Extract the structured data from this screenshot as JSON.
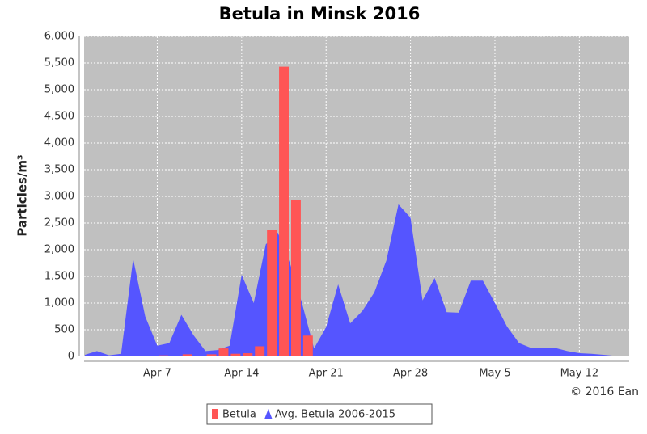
{
  "chart_data": {
    "type": "bar-area",
    "title": "Betula in Minsk 2016",
    "y_label": "Particles/m³",
    "credit": "© 2016 Ean",
    "categories": [
      null,
      null,
      null,
      null,
      null,
      null,
      "Apr 7",
      null,
      null,
      null,
      null,
      null,
      null,
      "Apr 14",
      null,
      null,
      null,
      null,
      null,
      null,
      "Apr 21",
      null,
      null,
      null,
      null,
      null,
      null,
      "Apr 28",
      null,
      null,
      null,
      null,
      null,
      null,
      "May 5",
      null,
      null,
      null,
      null,
      null,
      null,
      "May 12",
      null,
      null,
      null,
      null
    ],
    "series": [
      {
        "name": "Betula",
        "type": "bar",
        "color": "#ff5555",
        "values": [
          null,
          null,
          null,
          null,
          null,
          null,
          20,
          null,
          40,
          null,
          40,
          150,
          50,
          60,
          190,
          2370,
          5430,
          2930,
          390,
          null,
          null,
          null,
          null,
          null,
          null,
          null,
          null,
          null,
          null,
          null,
          null,
          null,
          null,
          null,
          null,
          null,
          null,
          null,
          null,
          null,
          null,
          null,
          null,
          null,
          null,
          null
        ]
      },
      {
        "name": "Avg. Betula 2006-2015",
        "type": "area",
        "color": "#5555ff",
        "values": [
          30,
          100,
          20,
          50,
          1830,
          750,
          200,
          250,
          780,
          400,
          100,
          120,
          200,
          1530,
          1000,
          2100,
          2320,
          1750,
          1000,
          150,
          550,
          1350,
          620,
          850,
          1200,
          1800,
          2850,
          2600,
          1050,
          1470,
          830,
          820,
          1420,
          1420,
          1000,
          560,
          250,
          160,
          160,
          160,
          100,
          60,
          50,
          30,
          10,
          0
        ]
      }
    ],
    "ylim": [
      0,
      6000
    ],
    "yticks": [
      0,
      500,
      {
        "value": 1000,
        "label": "1,000"
      },
      {
        "value": 1500,
        "label": "1,500"
      },
      {
        "value": 2000,
        "label": "2,000"
      },
      {
        "value": 2500,
        "label": "2,500"
      },
      {
        "value": 3000,
        "label": "3,000"
      },
      {
        "value": 3500,
        "label": "3,500"
      },
      {
        "value": 4000,
        "label": "4,000"
      },
      {
        "value": 4500,
        "label": "4,500"
      },
      {
        "value": 5000,
        "label": "5,000"
      },
      {
        "value": 5500,
        "label": "5,500"
      },
      {
        "value": 6000,
        "label": "6,000"
      }
    ],
    "grid": true
  }
}
